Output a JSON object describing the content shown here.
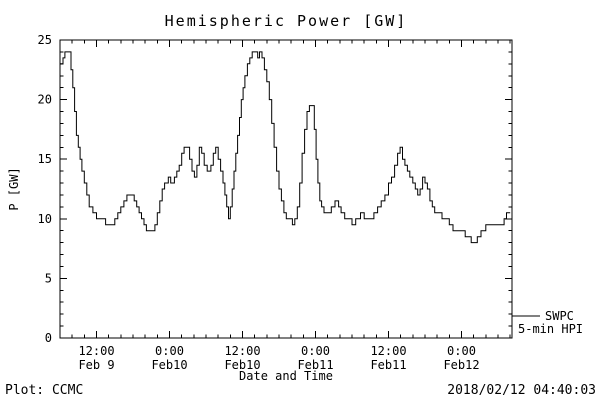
{
  "title": "Hemispheric Power [GW]",
  "legend": {
    "line1": "SWPC",
    "line2": "5-min HPI"
  },
  "footer": {
    "left": "Plot: CCMC",
    "right": "2018/02/12 04:40:03"
  },
  "chart_data": {
    "type": "line",
    "title": "Hemispheric Power [GW]",
    "xlabel": "Date and Time",
    "ylabel": "P [GW]",
    "ylim": [
      0,
      25
    ],
    "y_major_ticks": [
      0,
      5,
      10,
      15,
      20,
      25
    ],
    "x_unit": "hours (t=6 corresponds to 12:00 Feb 9)",
    "x_range_hours": [
      0,
      74.3
    ],
    "x_ticks": [
      {
        "t": 6,
        "time": "12:00",
        "date": "Feb 9"
      },
      {
        "t": 18,
        "time": "0:00",
        "date": "Feb10"
      },
      {
        "t": 30,
        "time": "12:00",
        "date": "Feb10"
      },
      {
        "t": 42,
        "time": "0:00",
        "date": "Feb11"
      },
      {
        "t": 54,
        "time": "12:00",
        "date": "Feb11"
      },
      {
        "t": 66,
        "time": "0:00",
        "date": "Feb12"
      }
    ],
    "grid": false,
    "legend_position": "outside-right-bottom",
    "legend_entries": [
      "SWPC 5-min HPI"
    ],
    "series": [
      {
        "name": "SWPC 5-min HPI",
        "color": "#000000",
        "points": [
          [
            0,
            23
          ],
          [
            0.5,
            23.5
          ],
          [
            0.8,
            24
          ],
          [
            1.5,
            24
          ],
          [
            1.8,
            22.5
          ],
          [
            2.1,
            21
          ],
          [
            2.4,
            19
          ],
          [
            2.7,
            17
          ],
          [
            3,
            16
          ],
          [
            3.3,
            15
          ],
          [
            3.6,
            14
          ],
          [
            4,
            13
          ],
          [
            4.4,
            12
          ],
          [
            4.8,
            11
          ],
          [
            5.4,
            10.5
          ],
          [
            6,
            10
          ],
          [
            7,
            10
          ],
          [
            7.5,
            9.5
          ],
          [
            8.5,
            9.5
          ],
          [
            9,
            10
          ],
          [
            9.5,
            10.5
          ],
          [
            10,
            11
          ],
          [
            10.5,
            11.5
          ],
          [
            11,
            12
          ],
          [
            11.8,
            12
          ],
          [
            12.2,
            11.5
          ],
          [
            12.6,
            11
          ],
          [
            13,
            10.5
          ],
          [
            13.4,
            10
          ],
          [
            13.8,
            9.5
          ],
          [
            14.2,
            9
          ],
          [
            15.2,
            9
          ],
          [
            15.6,
            9.5
          ],
          [
            16,
            10.5
          ],
          [
            16.4,
            11.5
          ],
          [
            16.8,
            12.5
          ],
          [
            17.2,
            13
          ],
          [
            17.8,
            13.5
          ],
          [
            18.2,
            13
          ],
          [
            18.8,
            13.5
          ],
          [
            19.2,
            14
          ],
          [
            19.6,
            14.5
          ],
          [
            20,
            15.5
          ],
          [
            20.4,
            16
          ],
          [
            20.9,
            16
          ],
          [
            21.3,
            15
          ],
          [
            21.7,
            14
          ],
          [
            22.1,
            13.5
          ],
          [
            22.5,
            14.5
          ],
          [
            22.9,
            16
          ],
          [
            23.3,
            15.5
          ],
          [
            23.7,
            14.5
          ],
          [
            24.2,
            14
          ],
          [
            24.8,
            14.5
          ],
          [
            25.2,
            15.5
          ],
          [
            25.6,
            16
          ],
          [
            26,
            15
          ],
          [
            26.4,
            14
          ],
          [
            26.8,
            13
          ],
          [
            27.1,
            12
          ],
          [
            27.4,
            11
          ],
          [
            27.7,
            10
          ],
          [
            28,
            11
          ],
          [
            28.3,
            12.5
          ],
          [
            28.6,
            14
          ],
          [
            28.9,
            15.5
          ],
          [
            29.2,
            17
          ],
          [
            29.5,
            18.5
          ],
          [
            29.8,
            20
          ],
          [
            30.1,
            21
          ],
          [
            30.4,
            22
          ],
          [
            30.8,
            23
          ],
          [
            31.2,
            23.5
          ],
          [
            31.6,
            24
          ],
          [
            32.2,
            24
          ],
          [
            32.5,
            23.5
          ],
          [
            32.8,
            24
          ],
          [
            33.2,
            23.5
          ],
          [
            33.6,
            22.5
          ],
          [
            34,
            21.5
          ],
          [
            34.4,
            20
          ],
          [
            34.8,
            18
          ],
          [
            35.2,
            16
          ],
          [
            35.6,
            14
          ],
          [
            36,
            12.5
          ],
          [
            36.4,
            11.5
          ],
          [
            36.8,
            10.5
          ],
          [
            37.2,
            10
          ],
          [
            37.8,
            10
          ],
          [
            38.2,
            9.5
          ],
          [
            38.6,
            10
          ],
          [
            39,
            11
          ],
          [
            39.4,
            13
          ],
          [
            39.8,
            15.5
          ],
          [
            40.2,
            17.5
          ],
          [
            40.6,
            19
          ],
          [
            41,
            19.5
          ],
          [
            41.5,
            19.5
          ],
          [
            41.8,
            17.5
          ],
          [
            42.1,
            15
          ],
          [
            42.4,
            13
          ],
          [
            42.7,
            11.5
          ],
          [
            43,
            11
          ],
          [
            43.4,
            10.5
          ],
          [
            44,
            10.5
          ],
          [
            44.6,
            11
          ],
          [
            45.2,
            11.5
          ],
          [
            45.8,
            11
          ],
          [
            46.2,
            10.5
          ],
          [
            46.8,
            10
          ],
          [
            47.6,
            10
          ],
          [
            48,
            9.5
          ],
          [
            48.6,
            10
          ],
          [
            49.4,
            10.5
          ],
          [
            50,
            10
          ],
          [
            51,
            10
          ],
          [
            51.6,
            10.5
          ],
          [
            52.2,
            11
          ],
          [
            52.8,
            11.5
          ],
          [
            53.4,
            12
          ],
          [
            54,
            13
          ],
          [
            54.5,
            13.5
          ],
          [
            55,
            14.5
          ],
          [
            55.5,
            15.5
          ],
          [
            55.9,
            16
          ],
          [
            56.3,
            15
          ],
          [
            56.7,
            14.5
          ],
          [
            57.1,
            14
          ],
          [
            57.5,
            13.5
          ],
          [
            58,
            13
          ],
          [
            58.4,
            12.5
          ],
          [
            58.8,
            12
          ],
          [
            59.2,
            12.5
          ],
          [
            59.6,
            13.5
          ],
          [
            60,
            13
          ],
          [
            60.4,
            12.5
          ],
          [
            60.8,
            11.5
          ],
          [
            61.2,
            11
          ],
          [
            61.6,
            10.5
          ],
          [
            62.2,
            10.5
          ],
          [
            62.8,
            10
          ],
          [
            63.6,
            10
          ],
          [
            64,
            9.5
          ],
          [
            64.6,
            9
          ],
          [
            65.6,
            9
          ],
          [
            66.2,
            9
          ],
          [
            66.6,
            8.5
          ],
          [
            67.2,
            8.5
          ],
          [
            67.6,
            8
          ],
          [
            68.2,
            8
          ],
          [
            68.6,
            8.5
          ],
          [
            69.2,
            9
          ],
          [
            70,
            9.5
          ],
          [
            71,
            9.5
          ],
          [
            72,
            9.5
          ],
          [
            72.6,
            9.5
          ],
          [
            73,
            10
          ],
          [
            73.4,
            10.5
          ],
          [
            74,
            10.5
          ]
        ]
      }
    ]
  }
}
